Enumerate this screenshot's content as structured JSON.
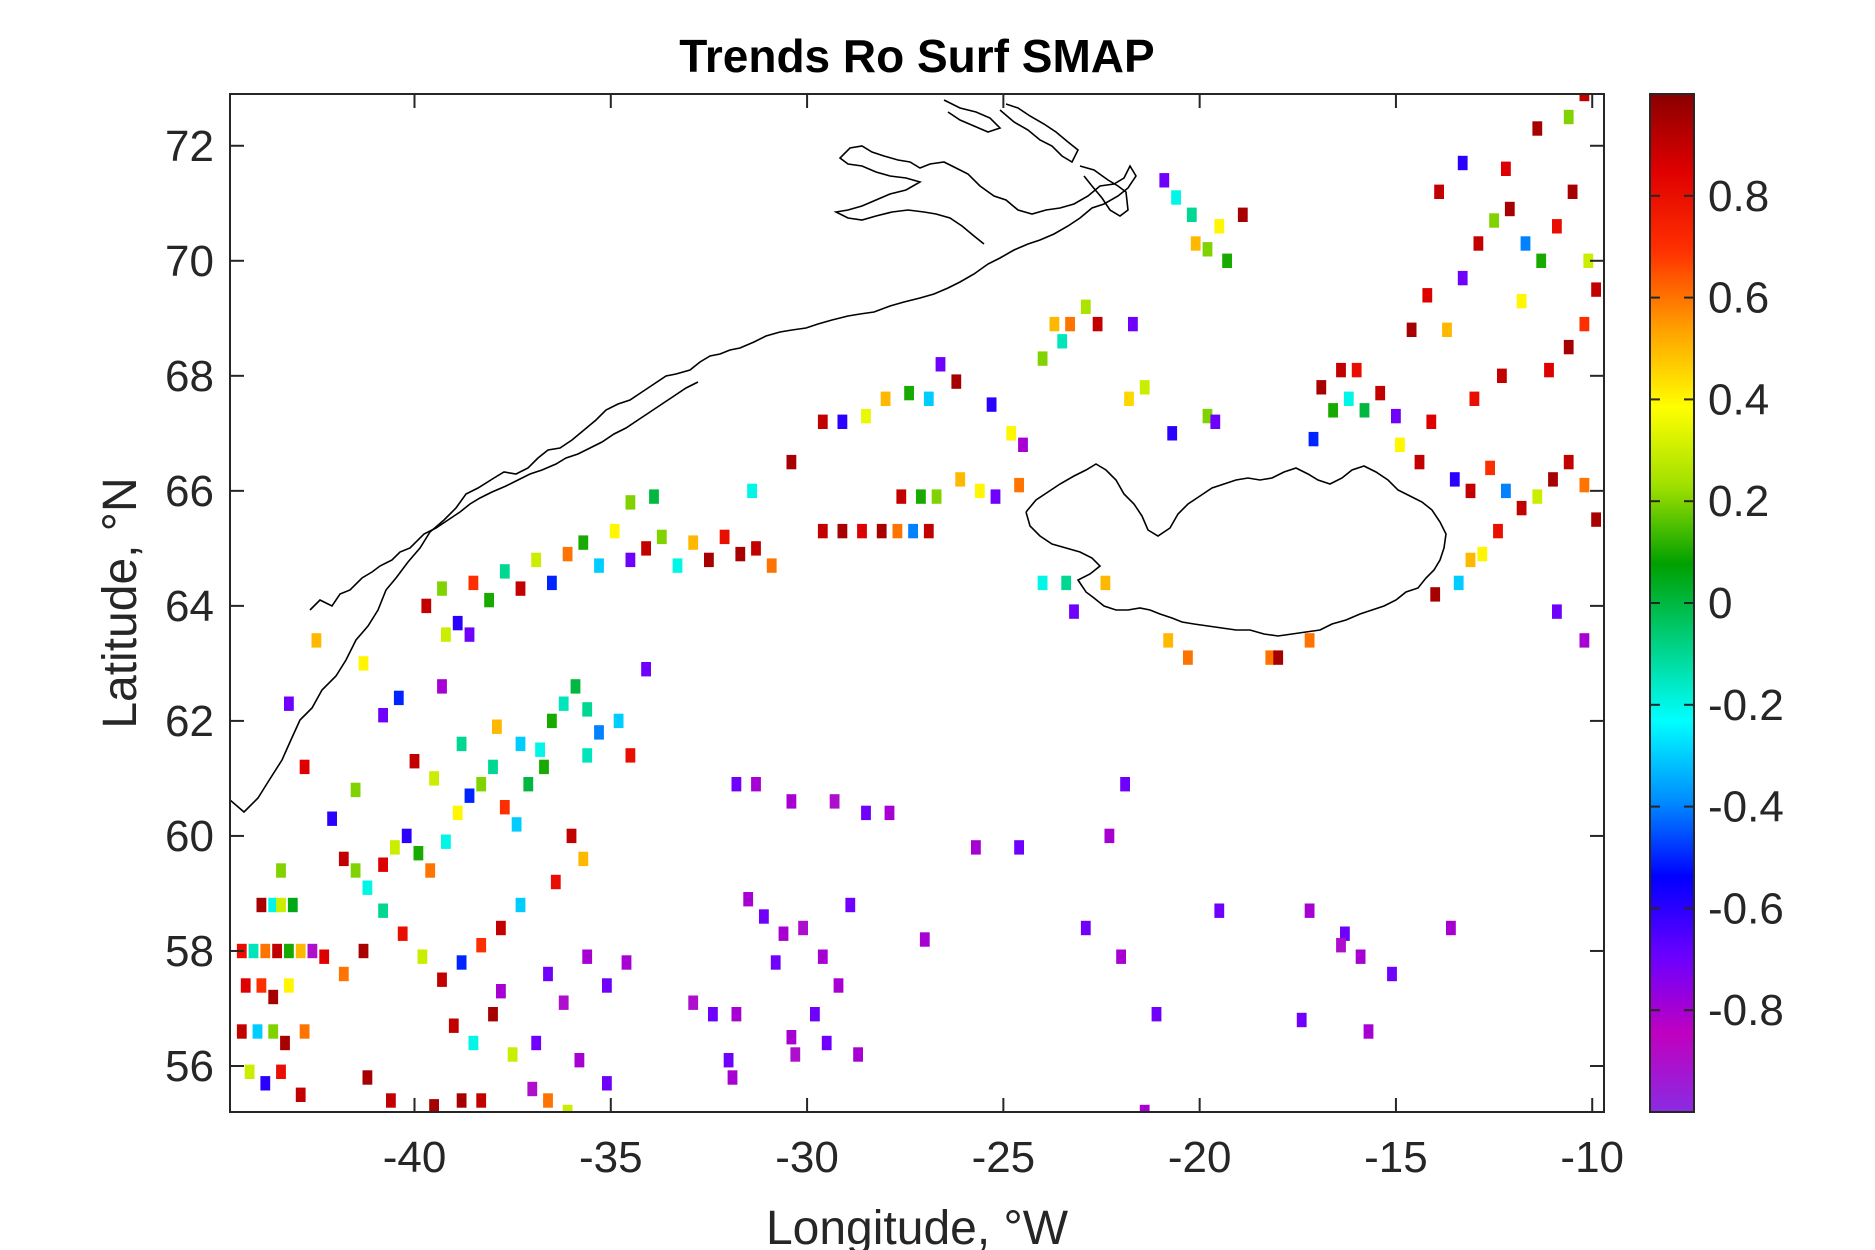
{
  "chart_data": {
    "type": "heatmap",
    "title": "Trends Ro Surf SMAP",
    "xlabel": "Longitude, °W",
    "ylabel": "Latitude, °N",
    "xlim": [
      -44.7,
      -9.7
    ],
    "ylim": [
      55.2,
      72.9
    ],
    "xticks": [
      -40,
      -35,
      -30,
      -25,
      -20,
      -15,
      -10
    ],
    "xtick_labels": [
      "-40",
      "-35",
      "-30",
      "-25",
      "-20",
      "-15",
      "-10"
    ],
    "yticks": [
      56,
      58,
      60,
      62,
      64,
      66,
      68,
      70,
      72
    ],
    "ytick_labels": [
      "56",
      "58",
      "60",
      "62",
      "64",
      "66",
      "68",
      "70",
      "72"
    ],
    "colorbar": {
      "range": [
        -1,
        1
      ],
      "ticks": [
        -0.8,
        -0.6,
        -0.4,
        -0.2,
        0,
        0.2,
        0.4,
        0.6,
        0.8
      ],
      "tick_labels": [
        "-0.8",
        "-0.6",
        "-0.4",
        "-0.2",
        "0",
        "0.2",
        "0.4",
        "0.6",
        "0.8"
      ],
      "colormap": [
        "#8a2be2",
        "#c000c0",
        "#6a00ff",
        "#0000ff",
        "#0090ff",
        "#00ffff",
        "#00d080",
        "#00a000",
        "#a0e000",
        "#ffff00",
        "#ffa000",
        "#ff3000",
        "#e00000",
        "#8b0000"
      ]
    },
    "grid_cell": 0.25,
    "cells": [
      [
        -43.9,
        58.8,
        0.95
      ],
      [
        -43.6,
        58.8,
        -0.2
      ],
      [
        -43.4,
        58.8,
        0.3
      ],
      [
        -43.1,
        58.8,
        0.05
      ],
      [
        -44.4,
        58.0,
        0.8
      ],
      [
        -44.1,
        58.0,
        -0.15
      ],
      [
        -43.8,
        58.0,
        0.6
      ],
      [
        -43.5,
        58.0,
        0.9
      ],
      [
        -43.2,
        58.0,
        0.1
      ],
      [
        -42.9,
        58.0,
        0.5
      ],
      [
        -42.6,
        58.0,
        -0.9
      ],
      [
        -44.3,
        57.4,
        0.85
      ],
      [
        -43.9,
        57.4,
        0.7
      ],
      [
        -43.6,
        57.2,
        0.95
      ],
      [
        -43.2,
        57.4,
        0.4
      ],
      [
        -44.4,
        56.6,
        0.9
      ],
      [
        -44.0,
        56.6,
        -0.3
      ],
      [
        -43.6,
        56.6,
        0.2
      ],
      [
        -43.3,
        56.4,
        0.95
      ],
      [
        -42.8,
        56.6,
        0.6
      ],
      [
        -44.2,
        55.9,
        0.3
      ],
      [
        -43.8,
        55.7,
        -0.6
      ],
      [
        -43.4,
        55.9,
        0.8
      ],
      [
        -42.9,
        55.5,
        0.9
      ],
      [
        -41.8,
        59.6,
        0.9
      ],
      [
        -41.5,
        59.4,
        0.2
      ],
      [
        -41.2,
        59.1,
        -0.2
      ],
      [
        -40.8,
        59.5,
        0.85
      ],
      [
        -40.5,
        59.8,
        0.3
      ],
      [
        -40.2,
        60.0,
        -0.6
      ],
      [
        -39.9,
        59.7,
        0.1
      ],
      [
        -39.6,
        59.4,
        0.6
      ],
      [
        -39.2,
        59.9,
        -0.2
      ],
      [
        -38.9,
        60.4,
        0.4
      ],
      [
        -38.6,
        60.7,
        -0.5
      ],
      [
        -38.3,
        60.9,
        0.2
      ],
      [
        -38.0,
        61.2,
        -0.1
      ],
      [
        -37.7,
        60.5,
        0.7
      ],
      [
        -37.4,
        60.2,
        -0.3
      ],
      [
        -37.1,
        60.9,
        0.0
      ],
      [
        -36.8,
        61.5,
        -0.2
      ],
      [
        -36.5,
        62.0,
        0.1
      ],
      [
        -36.2,
        62.3,
        -0.15
      ],
      [
        -35.9,
        62.6,
        0.0
      ],
      [
        -35.6,
        62.2,
        -0.1
      ],
      [
        -35.3,
        61.8,
        -0.4
      ],
      [
        -36.0,
        60.0,
        0.9
      ],
      [
        -35.7,
        59.6,
        0.5
      ],
      [
        -36.4,
        59.2,
        0.8
      ],
      [
        -37.3,
        58.8,
        -0.3
      ],
      [
        -37.8,
        58.4,
        0.9
      ],
      [
        -38.3,
        58.1,
        0.7
      ],
      [
        -38.8,
        57.8,
        -0.5
      ],
      [
        -39.3,
        57.5,
        0.9
      ],
      [
        -39.8,
        57.9,
        0.3
      ],
      [
        -40.3,
        58.3,
        0.8
      ],
      [
        -40.8,
        58.7,
        -0.1
      ],
      [
        -41.3,
        58.0,
        0.95
      ],
      [
        -41.8,
        57.6,
        0.6
      ],
      [
        -42.3,
        57.9,
        0.85
      ],
      [
        -39.0,
        56.7,
        0.9
      ],
      [
        -38.5,
        56.4,
        -0.2
      ],
      [
        -38.0,
        56.9,
        0.95
      ],
      [
        -37.5,
        56.2,
        0.3
      ],
      [
        -37.0,
        55.6,
        -0.9
      ],
      [
        -38.8,
        55.4,
        0.95
      ],
      [
        -38.3,
        55.4,
        0.9
      ],
      [
        -40.6,
        55.4,
        0.9
      ],
      [
        -41.2,
        55.8,
        0.95
      ],
      [
        -39.5,
        55.3,
        0.95
      ],
      [
        -39.7,
        64.0,
        0.9
      ],
      [
        -39.3,
        64.3,
        0.2
      ],
      [
        -38.9,
        63.7,
        -0.6
      ],
      [
        -38.5,
        64.4,
        0.7
      ],
      [
        -38.1,
        64.1,
        0.1
      ],
      [
        -37.7,
        64.6,
        -0.1
      ],
      [
        -37.3,
        64.3,
        0.9
      ],
      [
        -36.9,
        64.8,
        0.3
      ],
      [
        -36.5,
        64.4,
        -0.5
      ],
      [
        -36.1,
        64.9,
        0.6
      ],
      [
        -35.7,
        65.1,
        0.1
      ],
      [
        -35.3,
        64.7,
        -0.3
      ],
      [
        -34.9,
        65.3,
        0.4
      ],
      [
        -34.5,
        64.8,
        -0.7
      ],
      [
        -34.1,
        65.0,
        0.9
      ],
      [
        -33.7,
        65.2,
        0.2
      ],
      [
        -33.3,
        64.7,
        -0.2
      ],
      [
        -32.9,
        65.1,
        0.5
      ],
      [
        -32.5,
        64.8,
        0.95
      ],
      [
        -32.1,
        65.2,
        0.8
      ],
      [
        -31.7,
        64.9,
        0.95
      ],
      [
        -31.3,
        65.0,
        0.9
      ],
      [
        -30.9,
        64.7,
        0.6
      ],
      [
        -38.6,
        63.5,
        -0.7
      ],
      [
        -39.2,
        63.5,
        0.3
      ],
      [
        -34.5,
        65.8,
        0.2
      ],
      [
        -33.9,
        65.9,
        0.0
      ],
      [
        -31.4,
        66.0,
        -0.2
      ],
      [
        -29.6,
        65.3,
        0.9
      ],
      [
        -29.1,
        65.3,
        0.95
      ],
      [
        -28.6,
        65.3,
        0.85
      ],
      [
        -28.1,
        65.3,
        0.95
      ],
      [
        -27.7,
        65.3,
        0.6
      ],
      [
        -27.3,
        65.3,
        -0.4
      ],
      [
        -26.9,
        65.3,
        0.9
      ],
      [
        -27.6,
        65.9,
        0.9
      ],
      [
        -27.1,
        65.9,
        0.1
      ],
      [
        -26.7,
        65.9,
        0.2
      ],
      [
        -26.1,
        66.2,
        0.5
      ],
      [
        -25.6,
        66.0,
        0.4
      ],
      [
        -25.2,
        65.9,
        -0.7
      ],
      [
        -24.6,
        66.1,
        0.6
      ],
      [
        -30.4,
        66.5,
        0.95
      ],
      [
        -29.6,
        67.2,
        0.9
      ],
      [
        -29.1,
        67.2,
        -0.6
      ],
      [
        -28.5,
        67.3,
        0.35
      ],
      [
        -28.0,
        67.6,
        0.5
      ],
      [
        -27.4,
        67.7,
        0.1
      ],
      [
        -26.9,
        67.6,
        -0.3
      ],
      [
        -26.6,
        68.2,
        -0.7
      ],
      [
        -26.2,
        67.9,
        0.95
      ],
      [
        -25.3,
        67.5,
        -0.6
      ],
      [
        -24.5,
        66.8,
        -0.8
      ],
      [
        -24.8,
        67.0,
        0.4
      ],
      [
        -23.7,
        68.9,
        0.5
      ],
      [
        -23.3,
        68.9,
        0.6
      ],
      [
        -22.9,
        69.2,
        0.25
      ],
      [
        -22.6,
        68.9,
        0.9
      ],
      [
        -23.5,
        68.6,
        -0.15
      ],
      [
        -24.0,
        68.3,
        0.2
      ],
      [
        -21.7,
        68.9,
        -0.7
      ],
      [
        -21.4,
        67.8,
        0.3
      ],
      [
        -21.8,
        67.6,
        0.45
      ],
      [
        -20.7,
        67.0,
        -0.6
      ],
      [
        -19.8,
        67.3,
        0.2
      ],
      [
        -19.6,
        67.2,
        -0.7
      ],
      [
        -17.1,
        66.9,
        -0.5
      ],
      [
        -16.6,
        67.4,
        0.1
      ],
      [
        -16.2,
        67.6,
        -0.2
      ],
      [
        -15.8,
        67.4,
        0.0
      ],
      [
        -15.4,
        67.7,
        0.9
      ],
      [
        -15.0,
        67.3,
        -0.7
      ],
      [
        -16.9,
        67.8,
        0.95
      ],
      [
        -16.4,
        68.1,
        0.9
      ],
      [
        -16.0,
        68.1,
        0.8
      ],
      [
        -14.9,
        66.8,
        0.4
      ],
      [
        -14.4,
        66.5,
        0.9
      ],
      [
        -14.1,
        67.2,
        0.85
      ],
      [
        -13.5,
        66.2,
        -0.6
      ],
      [
        -13.1,
        66.0,
        0.9
      ],
      [
        -12.6,
        66.4,
        0.7
      ],
      [
        -12.2,
        66.0,
        -0.4
      ],
      [
        -11.8,
        65.7,
        0.9
      ],
      [
        -11.4,
        65.9,
        0.3
      ],
      [
        -11.0,
        66.2,
        0.95
      ],
      [
        -10.6,
        66.5,
        0.9
      ],
      [
        -10.2,
        66.1,
        0.6
      ],
      [
        -9.9,
        65.5,
        0.95
      ],
      [
        -12.4,
        65.3,
        0.8
      ],
      [
        -12.8,
        64.9,
        0.4
      ],
      [
        -13.1,
        64.8,
        0.5
      ],
      [
        -14.0,
        64.2,
        0.95
      ],
      [
        -13.4,
        64.4,
        -0.3
      ],
      [
        -10.9,
        63.9,
        -0.7
      ],
      [
        -10.2,
        63.4,
        -0.8
      ],
      [
        -14.6,
        68.8,
        0.95
      ],
      [
        -14.2,
        69.4,
        0.85
      ],
      [
        -13.7,
        68.8,
        0.5
      ],
      [
        -13.3,
        69.7,
        -0.7
      ],
      [
        -12.9,
        70.3,
        0.9
      ],
      [
        -12.5,
        70.7,
        0.2
      ],
      [
        -12.1,
        70.9,
        0.95
      ],
      [
        -11.7,
        70.3,
        -0.4
      ],
      [
        -11.3,
        70.0,
        0.1
      ],
      [
        -10.9,
        70.6,
        0.8
      ],
      [
        -10.5,
        71.2,
        0.95
      ],
      [
        -10.1,
        70.0,
        0.3
      ],
      [
        -9.9,
        69.5,
        0.9
      ],
      [
        -12.2,
        71.6,
        0.85
      ],
      [
        -11.4,
        72.3,
        0.95
      ],
      [
        -10.6,
        72.5,
        0.2
      ],
      [
        -10.2,
        72.9,
        0.9
      ],
      [
        -13.3,
        71.7,
        -0.6
      ],
      [
        -13.9,
        71.2,
        0.9
      ],
      [
        -11.8,
        69.3,
        0.4
      ],
      [
        -10.6,
        68.5,
        0.95
      ],
      [
        -10.2,
        68.9,
        0.7
      ],
      [
        -11.1,
        68.1,
        0.85
      ],
      [
        -12.3,
        68.0,
        0.9
      ],
      [
        -13.0,
        67.6,
        0.8
      ],
      [
        -20.9,
        71.4,
        -0.7
      ],
      [
        -20.6,
        71.1,
        -0.2
      ],
      [
        -20.2,
        70.8,
        -0.1
      ],
      [
        -19.8,
        70.2,
        0.2
      ],
      [
        -19.5,
        70.6,
        0.4
      ],
      [
        -18.9,
        70.8,
        0.95
      ],
      [
        -20.1,
        70.3,
        0.5
      ],
      [
        -19.3,
        70.0,
        0.1
      ],
      [
        -24.0,
        64.4,
        -0.2
      ],
      [
        -23.4,
        64.4,
        -0.1
      ],
      [
        -22.4,
        64.4,
        0.5
      ],
      [
        -23.2,
        63.9,
        -0.7
      ],
      [
        -20.8,
        63.4,
        0.5
      ],
      [
        -20.3,
        63.1,
        0.6
      ],
      [
        -18.2,
        63.1,
        0.6
      ],
      [
        -18.0,
        63.1,
        0.95
      ],
      [
        -17.2,
        63.4,
        0.6
      ],
      [
        -31.8,
        60.9,
        -0.7
      ],
      [
        -31.3,
        60.9,
        -0.8
      ],
      [
        -30.4,
        60.6,
        -0.8
      ],
      [
        -29.3,
        60.6,
        -0.9
      ],
      [
        -28.5,
        60.4,
        -0.7
      ],
      [
        -27.9,
        60.4,
        -0.8
      ],
      [
        -25.7,
        59.8,
        -0.8
      ],
      [
        -24.6,
        59.8,
        -0.7
      ],
      [
        -22.3,
        60.0,
        -0.8
      ],
      [
        -21.9,
        60.9,
        -0.7
      ],
      [
        -31.5,
        58.9,
        -0.8
      ],
      [
        -31.1,
        58.6,
        -0.7
      ],
      [
        -30.6,
        58.3,
        -0.8
      ],
      [
        -30.1,
        58.4,
        -0.9
      ],
      [
        -29.6,
        57.9,
        -0.8
      ],
      [
        -28.9,
        58.8,
        -0.7
      ],
      [
        -29.2,
        57.4,
        -0.8
      ],
      [
        -29.8,
        56.9,
        -0.7
      ],
      [
        -30.4,
        56.5,
        -0.8
      ],
      [
        -30.3,
        56.2,
        -0.9
      ],
      [
        -29.5,
        56.4,
        -0.7
      ],
      [
        -28.7,
        56.2,
        -0.8
      ],
      [
        -32.0,
        56.1,
        -0.7
      ],
      [
        -31.9,
        55.8,
        -0.8
      ],
      [
        -32.4,
        56.9,
        -0.7
      ],
      [
        -32.9,
        57.1,
        -0.9
      ],
      [
        -31.8,
        56.9,
        -0.8
      ],
      [
        -30.8,
        57.8,
        -0.7
      ],
      [
        -27.0,
        58.2,
        -0.8
      ],
      [
        -22.9,
        58.4,
        -0.7
      ],
      [
        -22.0,
        57.9,
        -0.8
      ],
      [
        -19.5,
        58.7,
        -0.7
      ],
      [
        -17.2,
        58.7,
        -0.8
      ],
      [
        -16.3,
        58.3,
        -0.7
      ],
      [
        -15.9,
        57.9,
        -0.8
      ],
      [
        -15.1,
        57.6,
        -0.7
      ],
      [
        -13.6,
        58.4,
        -0.8
      ],
      [
        -17.4,
        56.8,
        -0.7
      ],
      [
        -16.4,
        58.1,
        -0.9
      ],
      [
        -15.7,
        56.6,
        -0.8
      ],
      [
        -21.1,
        56.9,
        -0.7
      ],
      [
        -21.4,
        55.2,
        -0.8
      ],
      [
        -37.8,
        57.3,
        -0.8
      ],
      [
        -36.6,
        57.6,
        -0.7
      ],
      [
        -36.2,
        57.1,
        -0.9
      ],
      [
        -35.6,
        57.9,
        -0.8
      ],
      [
        -35.1,
        57.4,
        -0.7
      ],
      [
        -34.6,
        57.8,
        -0.8
      ],
      [
        -36.9,
        56.4,
        -0.7
      ],
      [
        -35.8,
        56.1,
        -0.8
      ],
      [
        -35.1,
        55.7,
        -0.7
      ],
      [
        -36.6,
        55.4,
        0.6
      ],
      [
        -36.1,
        55.2,
        0.3
      ],
      [
        -40.8,
        62.1,
        -0.7
      ],
      [
        -40.4,
        62.4,
        -0.5
      ],
      [
        -39.3,
        62.6,
        -0.8
      ],
      [
        -40.0,
        61.3,
        0.9
      ],
      [
        -39.5,
        61.0,
        0.3
      ],
      [
        -38.8,
        61.6,
        -0.1
      ],
      [
        -37.9,
        61.9,
        0.5
      ],
      [
        -37.3,
        61.6,
        -0.3
      ],
      [
        -36.7,
        61.2,
        0.1
      ],
      [
        -35.6,
        61.4,
        -0.15
      ],
      [
        -34.8,
        62.0,
        -0.3
      ],
      [
        -34.5,
        61.4,
        0.8
      ],
      [
        -34.1,
        62.9,
        -0.7
      ],
      [
        -41.3,
        63.0,
        0.4
      ],
      [
        -42.5,
        63.4,
        0.5
      ],
      [
        -43.2,
        62.3,
        -0.7
      ],
      [
        -42.8,
        61.2,
        0.85
      ],
      [
        -42.1,
        60.3,
        -0.6
      ],
      [
        -41.5,
        60.8,
        0.2
      ],
      [
        -43.4,
        59.4,
        0.2
      ]
    ]
  }
}
